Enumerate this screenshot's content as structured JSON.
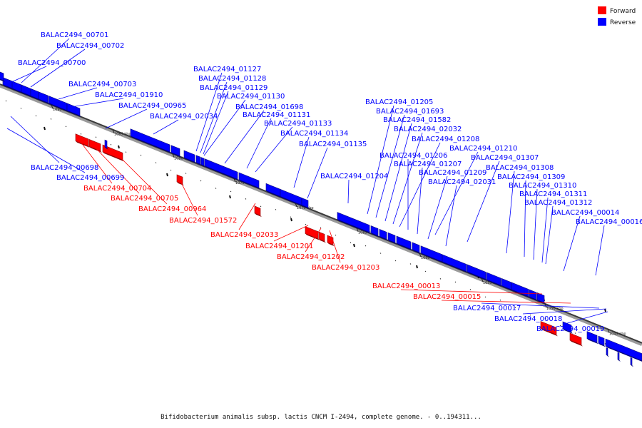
{
  "legend": {
    "forward": {
      "label": "Forward",
      "color": "#ff0000"
    },
    "reverse": {
      "label": "Reverse",
      "color": "#0000ff"
    }
  },
  "caption": "Bifidobacterium animalis subsp. lactis CNCM I-2494, complete genome. - 0..194311...",
  "axis_ticks": [
    "1090 kbp",
    "1085 kbp",
    "1080 kbp",
    "1075 kbp",
    "1070 kbp",
    "1065 kbp",
    "1060 kbp",
    "1055 kbp",
    "1050 kbp",
    "1045 kbp"
  ],
  "genes": [
    {
      "id": "BALAC2494_00701",
      "strand": "reverse"
    },
    {
      "id": "BALAC2494_00702",
      "strand": "reverse"
    },
    {
      "id": "BALAC2494_00700",
      "strand": "reverse"
    },
    {
      "id": "BALAC2494_00703",
      "strand": "reverse"
    },
    {
      "id": "BALAC2494_01910",
      "strand": "reverse"
    },
    {
      "id": "BALAC2494_00965",
      "strand": "reverse"
    },
    {
      "id": "BALAC2494_02034",
      "strand": "reverse"
    },
    {
      "id": "BALAC2494_01127",
      "strand": "reverse"
    },
    {
      "id": "BALAC2494_01128",
      "strand": "reverse"
    },
    {
      "id": "BALAC2494_01129",
      "strand": "reverse"
    },
    {
      "id": "BALAC2494_01130",
      "strand": "reverse"
    },
    {
      "id": "BALAC2494_01698",
      "strand": "reverse"
    },
    {
      "id": "BALAC2494_01131",
      "strand": "reverse"
    },
    {
      "id": "BALAC2494_01133",
      "strand": "reverse"
    },
    {
      "id": "BALAC2494_01134",
      "strand": "reverse"
    },
    {
      "id": "BALAC2494_01135",
      "strand": "reverse"
    },
    {
      "id": "BALAC2494_01204",
      "strand": "reverse"
    },
    {
      "id": "BALAC2494_01205",
      "strand": "reverse"
    },
    {
      "id": "BALAC2494_01693",
      "strand": "reverse"
    },
    {
      "id": "BALAC2494_01582",
      "strand": "reverse"
    },
    {
      "id": "BALAC2494_02032",
      "strand": "reverse"
    },
    {
      "id": "BALAC2494_01208",
      "strand": "reverse"
    },
    {
      "id": "BALAC2494_01206",
      "strand": "reverse"
    },
    {
      "id": "BALAC2494_01210",
      "strand": "reverse"
    },
    {
      "id": "BALAC2494_01207",
      "strand": "reverse"
    },
    {
      "id": "BALAC2494_01307",
      "strand": "reverse"
    },
    {
      "id": "BALAC2494_01209",
      "strand": "reverse"
    },
    {
      "id": "BALAC2494_01308",
      "strand": "reverse"
    },
    {
      "id": "BALAC2494_02031",
      "strand": "reverse"
    },
    {
      "id": "BALAC2494_01309",
      "strand": "reverse"
    },
    {
      "id": "BALAC2494_01310",
      "strand": "reverse"
    },
    {
      "id": "BALAC2494_01311",
      "strand": "reverse"
    },
    {
      "id": "BALAC2494_01312",
      "strand": "reverse"
    },
    {
      "id": "BALAC2494_00014",
      "strand": "reverse"
    },
    {
      "id": "BALAC2494_00016",
      "strand": "reverse"
    },
    {
      "id": "BALAC2494_00698",
      "strand": "reverse"
    },
    {
      "id": "BALAC2494_00699",
      "strand": "reverse"
    },
    {
      "id": "BALAC2494_00704",
      "strand": "forward"
    },
    {
      "id": "BALAC2494_00705",
      "strand": "forward"
    },
    {
      "id": "BALAC2494_00964",
      "strand": "forward"
    },
    {
      "id": "BALAC2494_01572",
      "strand": "forward"
    },
    {
      "id": "BALAC2494_02033",
      "strand": "forward"
    },
    {
      "id": "BALAC2494_01201",
      "strand": "forward"
    },
    {
      "id": "BALAC2494_01202",
      "strand": "forward"
    },
    {
      "id": "BALAC2494_01203",
      "strand": "forward"
    },
    {
      "id": "BALAC2494_00013",
      "strand": "forward"
    },
    {
      "id": "BALAC2494_00015",
      "strand": "forward"
    },
    {
      "id": "BALAC2494_00017",
      "strand": "reverse"
    },
    {
      "id": "BALAC2494_00018",
      "strand": "reverse"
    },
    {
      "id": "BALAC2494_00019",
      "strand": "reverse"
    }
  ]
}
